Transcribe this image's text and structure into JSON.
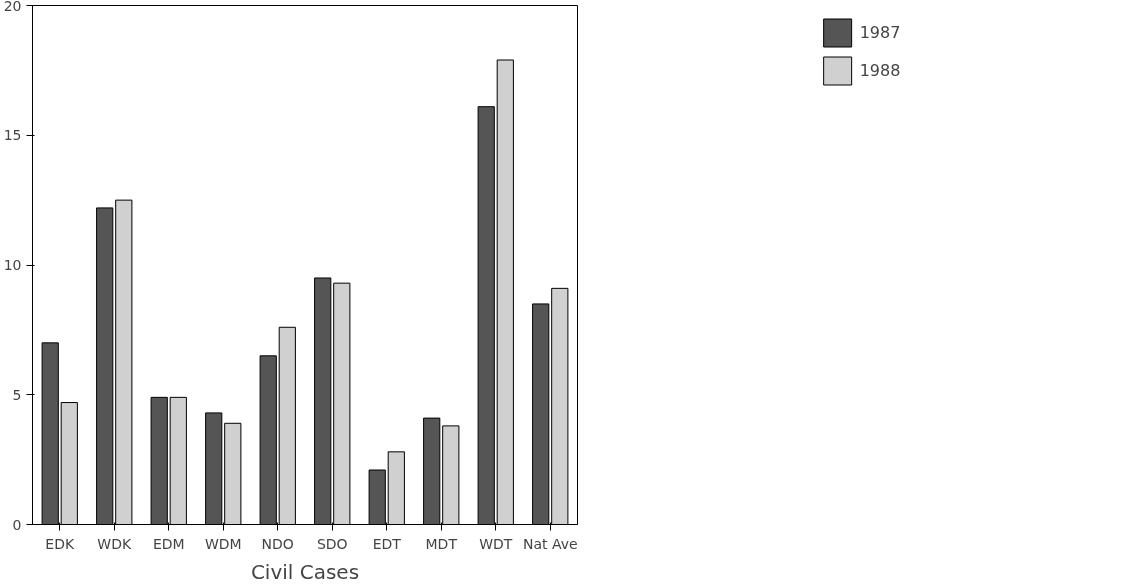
{
  "chart_data": {
    "type": "bar",
    "xlabel": "Civil Cases",
    "categories": [
      "EDK",
      "WDK",
      "EDM",
      "WDM",
      "NDO",
      "SDO",
      "EDT",
      "MDT",
      "WDT",
      "Nat Ave"
    ],
    "series": [
      {
        "name": "1987",
        "color": "#555555",
        "values": [
          7.0,
          12.2,
          4.9,
          4.3,
          6.5,
          9.5,
          2.1,
          4.1,
          16.1,
          8.5
        ]
      },
      {
        "name": "1988",
        "color": "#d0d0d0",
        "values": [
          4.7,
          12.5,
          4.9,
          3.9,
          7.6,
          9.3,
          2.8,
          3.8,
          17.9,
          9.1
        ]
      }
    ],
    "ylim": [
      0,
      20
    ],
    "yticks": [
      0,
      5,
      10,
      15,
      20
    ],
    "grid": false,
    "legend": "top right"
  }
}
